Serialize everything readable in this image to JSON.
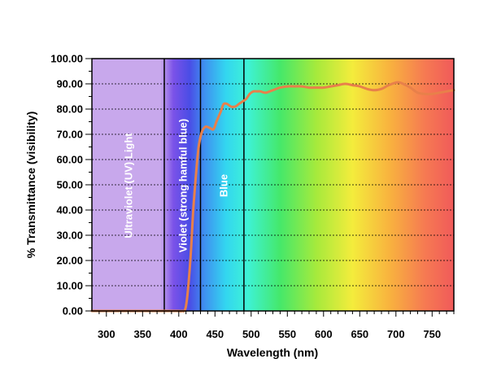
{
  "chart_data": {
    "type": "line",
    "title": "",
    "xlabel": "Wavelength (nm)",
    "ylabel": "% Transmittance (visibility)",
    "xlim": [
      280,
      780
    ],
    "ylim": [
      0,
      100
    ],
    "x_ticks": [
      300,
      350,
      400,
      450,
      500,
      550,
      600,
      650,
      700,
      750
    ],
    "x_tick_labels": [
      "300",
      "350",
      "400",
      "450",
      "500",
      "550",
      "600",
      "650",
      "700",
      "750"
    ],
    "y_ticks": [
      0,
      10,
      20,
      30,
      40,
      50,
      60,
      70,
      80,
      90,
      100
    ],
    "y_tick_labels": [
      "0.00",
      "10.00",
      "20.00",
      "30.00",
      "40.00",
      "50.00",
      "60.00",
      "70.00",
      "80.00",
      "90.00",
      "100.00"
    ],
    "grid": "horizontal dotted",
    "line_color": "#e8804a",
    "regions": [
      {
        "label": "Ultraviolet (UV) Light",
        "x_start": 280,
        "x_end": 380,
        "color": "#c9a9ec"
      },
      {
        "label": "Violet (strong hamful blue)",
        "x_start": 380,
        "x_end": 430,
        "color": "#6a44e6"
      },
      {
        "label": "Blue",
        "x_start": 430,
        "x_end": 490,
        "color": "#3f9bef"
      }
    ],
    "region_boundaries": [
      380,
      430,
      490
    ],
    "series": [
      {
        "x": [
          280,
          300,
          350,
          380,
          400,
          404,
          410,
          416,
          420,
          425,
          428,
          432,
          437,
          443,
          448,
          452,
          458,
          462,
          467,
          472,
          478,
          483,
          488,
          493,
          498,
          503,
          508,
          513,
          520,
          530,
          540,
          550,
          560,
          570,
          580,
          590,
          600,
          610,
          620,
          630,
          640,
          650,
          660,
          670,
          680,
          690,
          700,
          705,
          710,
          720,
          730,
          740,
          750,
          760,
          770,
          780
        ],
        "y": [
          0,
          0,
          0,
          0,
          0,
          0,
          2,
          20,
          40,
          58,
          66,
          71,
          73,
          72.5,
          72,
          75,
          79,
          82,
          82,
          81,
          81,
          82,
          83,
          84,
          86,
          87,
          87,
          87,
          86.5,
          87.5,
          88.5,
          89,
          89,
          89,
          88.5,
          88.5,
          88.5,
          89,
          89.5,
          90,
          89.5,
          89,
          88,
          87.5,
          88,
          89.5,
          90.5,
          90.5,
          90,
          88.5,
          86.5,
          86,
          86,
          86.5,
          87,
          87.5
        ]
      }
    ]
  }
}
